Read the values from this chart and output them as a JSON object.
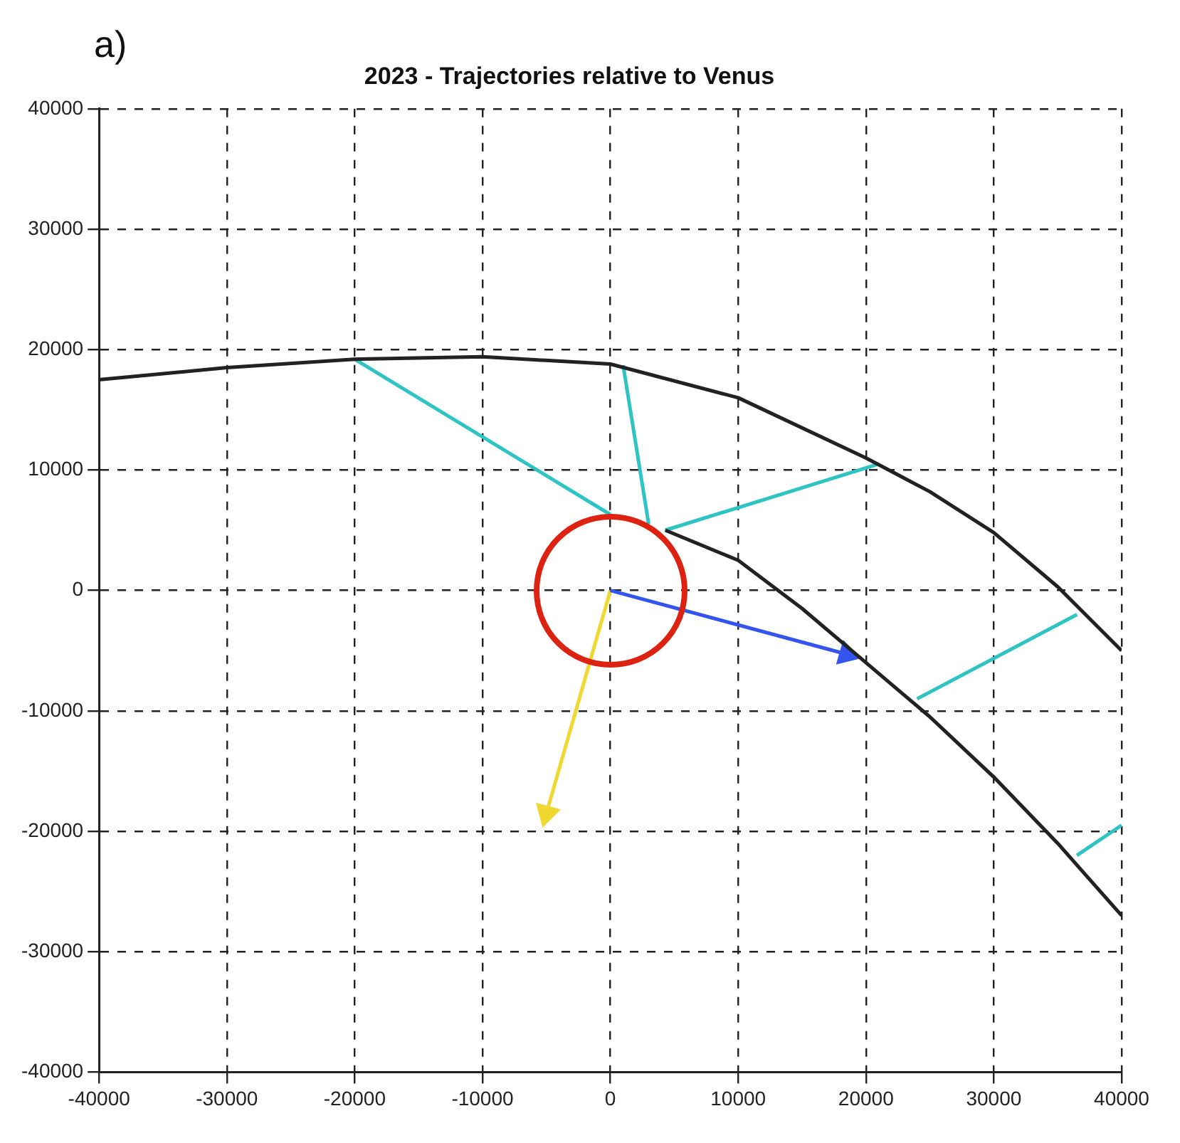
{
  "chart_data": {
    "type": "line",
    "title": "2023 - Trajectories relative to Venus",
    "annotations": [
      "a)"
    ],
    "xlim": [
      -40000,
      40000
    ],
    "ylim": [
      -40000,
      40000
    ],
    "xticks": [
      -40000,
      -30000,
      -20000,
      -10000,
      0,
      10000,
      20000,
      30000,
      40000
    ],
    "yticks": [
      -40000,
      -30000,
      -20000,
      -10000,
      0,
      10000,
      20000,
      30000,
      40000
    ],
    "grid": true,
    "legend": false,
    "marker": "none",
    "series": [
      {
        "color": "#222222",
        "x": [
          -40000,
          -30000,
          -20000,
          -10000,
          0,
          10000,
          20000,
          25000,
          30000,
          35000,
          40000
        ],
        "values": [
          17500,
          18500,
          19200,
          19400,
          18800,
          16000,
          11000,
          8200,
          4800,
          300,
          -5000
        ]
      },
      {
        "color": "#222222",
        "x": [
          4300,
          10000,
          15000,
          20000,
          25000,
          30000,
          35000,
          40000
        ],
        "values": [
          5000,
          2500,
          -1500,
          -6000,
          -10500,
          -15500,
          -21000,
          -27000
        ]
      },
      {
        "color": "#2ec4c4",
        "x": [
          -20000,
          0
        ],
        "values": [
          19200,
          6300
        ]
      },
      {
        "color": "#2ec4c4",
        "x": [
          1000,
          3000
        ],
        "values": [
          18700,
          5500
        ]
      },
      {
        "color": "#2ec4c4",
        "x": [
          21000,
          4300
        ],
        "values": [
          10500,
          5000
        ]
      },
      {
        "color": "#2ec4c4",
        "x": [
          36500,
          24000
        ],
        "values": [
          -2000,
          -9000
        ]
      },
      {
        "color": "#2ec4c4",
        "x": [
          40000,
          36500
        ],
        "values": [
          -19500,
          -22000
        ]
      },
      {
        "color": "#3355ee",
        "marker": "triangle",
        "x": [
          0,
          18500
        ],
        "values": [
          0,
          -5300
        ]
      },
      {
        "color": "#f0d830",
        "marker": "triangle",
        "x": [
          0,
          -5000
        ],
        "values": [
          0,
          -18500
        ]
      }
    ]
  }
}
